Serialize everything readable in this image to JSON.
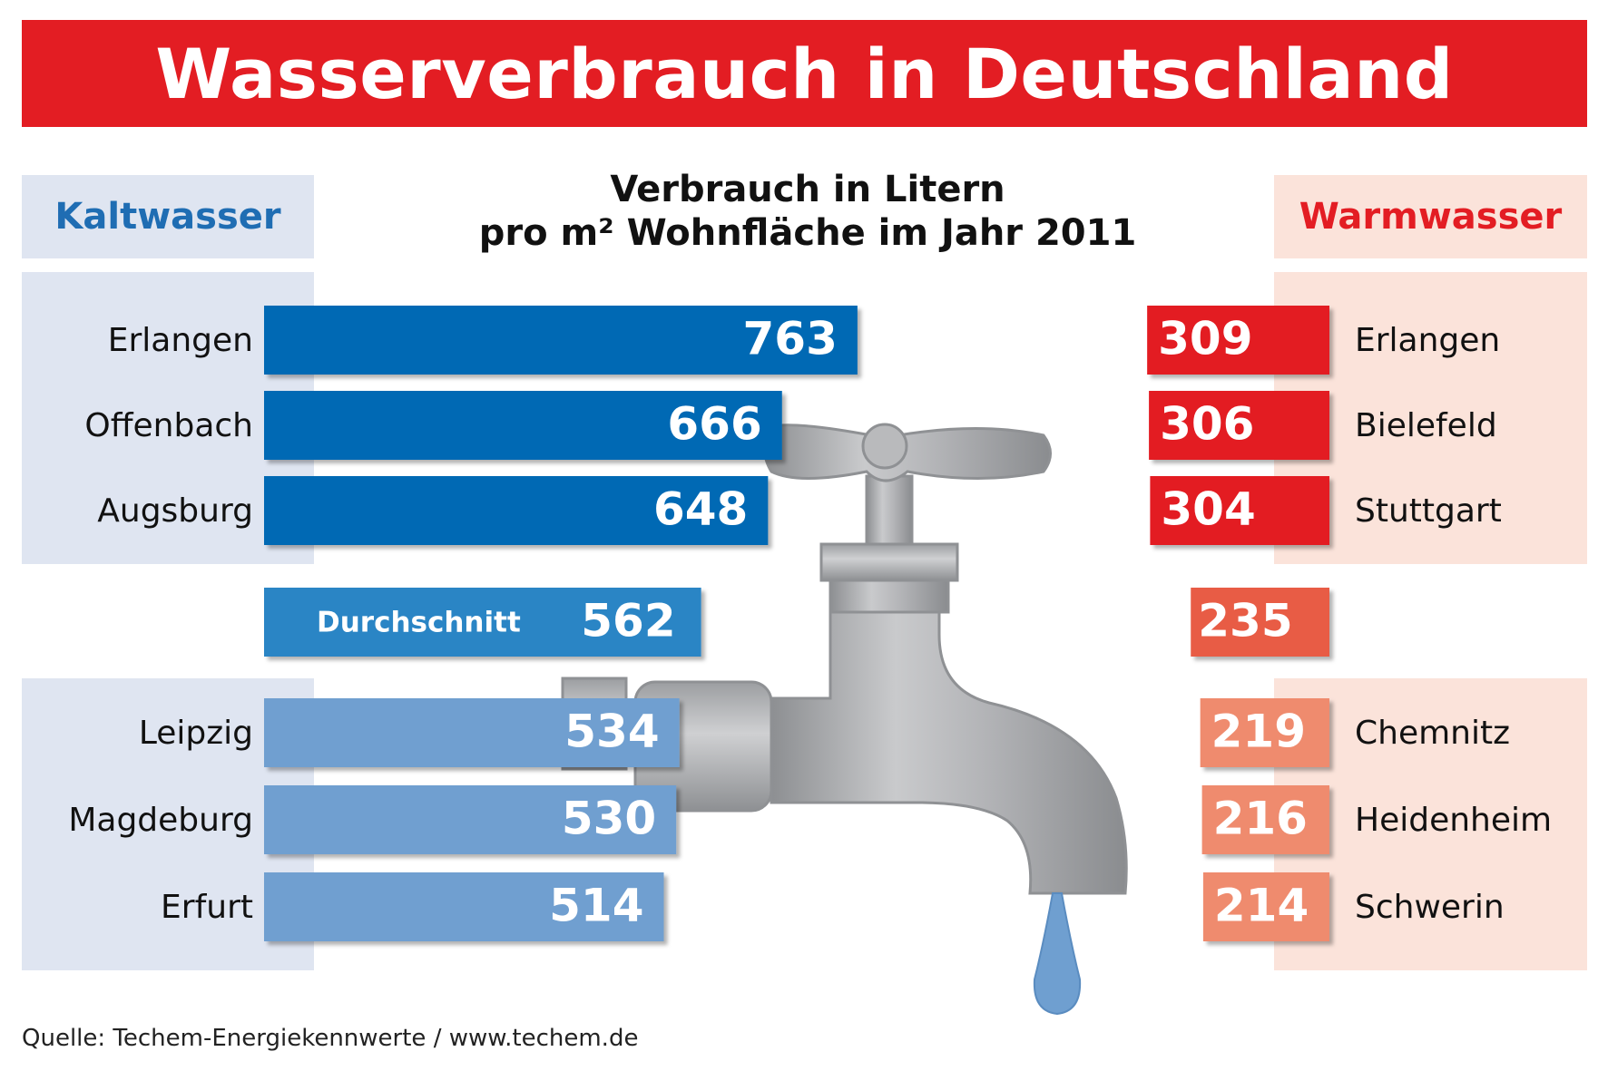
{
  "title": "Wasserverbrauch in Deutschland",
  "subtitle_line1": "Verbrauch in Litern",
  "subtitle_line2": "pro m² Wohnfläche im Jahr 2011",
  "source": "Quelle: Techem-Energiekennwerte / www.techem.de",
  "chart_data": {
    "type": "bar",
    "title": "Wasserverbrauch in Deutschland",
    "subtitle": "Verbrauch in Litern pro m² Wohnfläche im Jahr 2011",
    "cold": {
      "heading": "Kaltwasser",
      "top": [
        {
          "city": "Erlangen",
          "value": 763
        },
        {
          "city": "Offenbach",
          "value": 666
        },
        {
          "city": "Augsburg",
          "value": 648
        }
      ],
      "average": {
        "label": "Durchschnitt",
        "value": 562
      },
      "bottom": [
        {
          "city": "Leipzig",
          "value": 534
        },
        {
          "city": "Magdeburg",
          "value": 530
        },
        {
          "city": "Erfurt",
          "value": 514
        }
      ]
    },
    "warm": {
      "heading": "Warmwasser",
      "top": [
        {
          "city": "Erlangen",
          "value": 309
        },
        {
          "city": "Bielefeld",
          "value": 306
        },
        {
          "city": "Stuttgart",
          "value": 304
        }
      ],
      "average": {
        "value": 235
      },
      "bottom": [
        {
          "city": "Chemnitz",
          "value": 219
        },
        {
          "city": "Heidenheim",
          "value": 216
        },
        {
          "city": "Schwerin",
          "value": 214
        }
      ]
    },
    "colors": {
      "cold_top": "#0069b4",
      "cold_avg": "#2b85c5",
      "cold_bottom": "#6f9fd0",
      "warm_top": "#e31d23",
      "warm_avg": "#e85c44",
      "warm_bottom": "#ef8b6e"
    }
  }
}
